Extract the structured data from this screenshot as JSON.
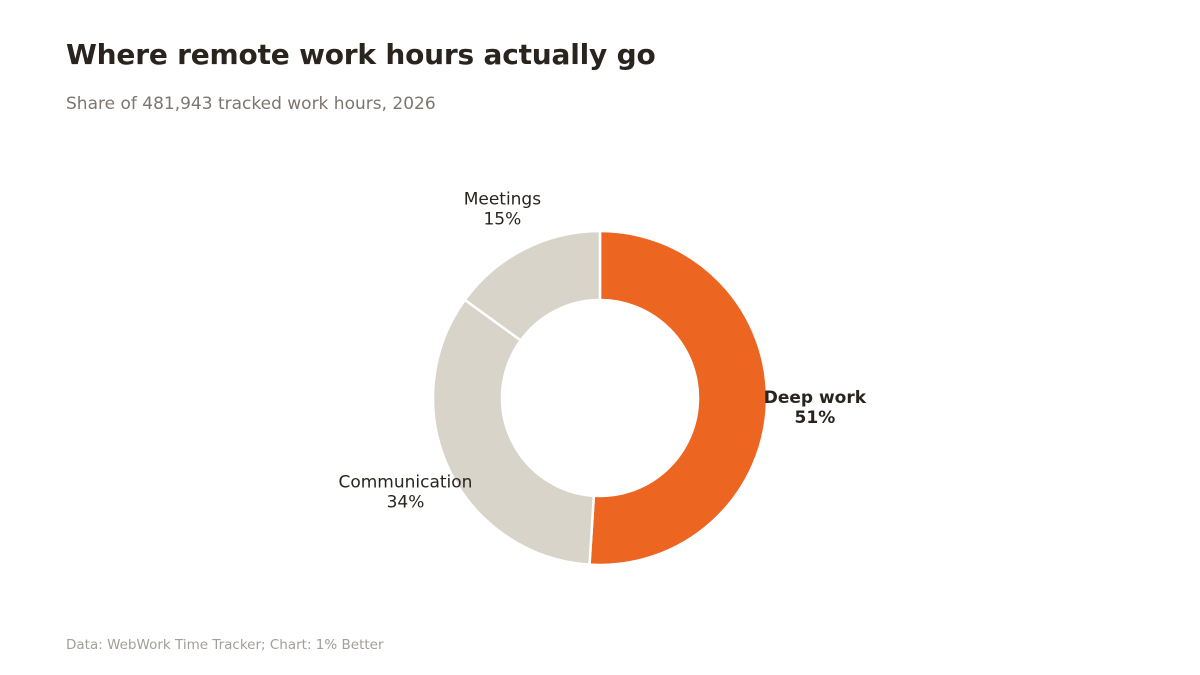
{
  "title": "Where remote work hours actually go",
  "subtitle": "Share of 481,943 tracked work hours, 2026",
  "source": "Data: WebWork Time Tracker; Chart: 1% Better",
  "colors": {
    "highlight": "#ec6521",
    "muted": "#d9d4ca",
    "separator": "#ffffff",
    "text": "#2a241f"
  },
  "chart_data": {
    "type": "pie",
    "style": "donut",
    "categories": [
      "Deep work",
      "Communication",
      "Meetings"
    ],
    "values": [
      51,
      34,
      15
    ],
    "value_labels": [
      "51%",
      "34%",
      "15%"
    ],
    "highlighted": "Deep work",
    "start": "12 o'clock",
    "direction": "clockwise"
  }
}
